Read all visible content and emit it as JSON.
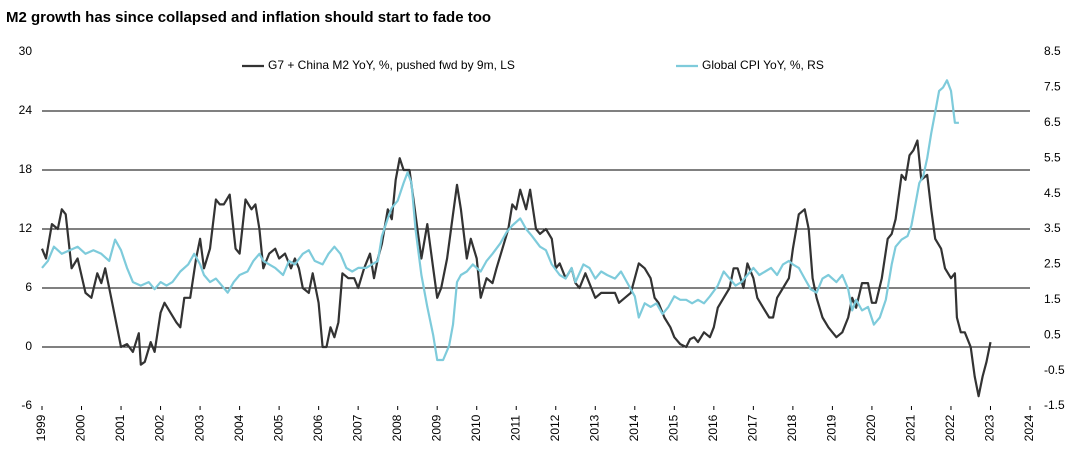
{
  "chart_data": {
    "type": "line",
    "title": "M2 growth has since collapsed and inflation should start to fade too",
    "xlim": [
      1999,
      2024
    ],
    "xticks": [
      1999,
      2000,
      2001,
      2002,
      2003,
      2004,
      2005,
      2006,
      2007,
      2008,
      2009,
      2010,
      2011,
      2012,
      2013,
      2014,
      2015,
      2016,
      2017,
      2018,
      2019,
      2020,
      2021,
      2022,
      2023,
      2024
    ],
    "ylim": [
      -6,
      30
    ],
    "yticks": [
      -6,
      0,
      6,
      12,
      18,
      24,
      30
    ],
    "y2lim": [
      -1.5,
      8.5
    ],
    "y2ticks": [
      -1.5,
      -0.5,
      0.5,
      1.5,
      2.5,
      3.5,
      4.5,
      5.5,
      6.5,
      7.5,
      8.5
    ],
    "grid": true,
    "legend": "top",
    "series": [
      {
        "name": "G7 + China M2 YoY, %, pushed fwd by 9m, LS",
        "color": "#333333",
        "axis": "y",
        "x": [
          1999.0,
          1999.1,
          1999.25,
          1999.4,
          1999.5,
          1999.6,
          1999.75,
          1999.9,
          2000.1,
          2000.25,
          2000.4,
          2000.5,
          2000.6,
          2000.75,
          2000.9,
          2001.0,
          2001.15,
          2001.3,
          2001.45,
          2001.5,
          2001.6,
          2001.75,
          2001.85,
          2002.0,
          2002.1,
          2002.25,
          2002.4,
          2002.5,
          2002.6,
          2002.75,
          2002.9,
          2003.0,
          2003.1,
          2003.25,
          2003.4,
          2003.5,
          2003.6,
          2003.75,
          2003.9,
          2004.0,
          2004.15,
          2004.3,
          2004.4,
          2004.5,
          2004.6,
          2004.75,
          2004.9,
          2005.0,
          2005.15,
          2005.3,
          2005.4,
          2005.5,
          2005.6,
          2005.75,
          2005.85,
          2006.0,
          2006.1,
          2006.2,
          2006.3,
          2006.4,
          2006.5,
          2006.6,
          2006.75,
          2006.9,
          2007.0,
          2007.15,
          2007.3,
          2007.4,
          2007.5,
          2007.6,
          2007.75,
          2007.85,
          2007.95,
          2008.05,
          2008.15,
          2008.3,
          2008.4,
          2008.5,
          2008.6,
          2008.75,
          2008.9,
          2009.0,
          2009.1,
          2009.25,
          2009.4,
          2009.5,
          2009.6,
          2009.75,
          2009.85,
          2010.0,
          2010.1,
          2010.25,
          2010.4,
          2010.5,
          2010.65,
          2010.8,
          2010.9,
          2011.0,
          2011.1,
          2011.25,
          2011.35,
          2011.5,
          2011.6,
          2011.75,
          2011.9,
          2012.0,
          2012.1,
          2012.25,
          2012.4,
          2012.5,
          2012.6,
          2012.75,
          2012.9,
          2013.0,
          2013.15,
          2013.3,
          2013.5,
          2013.6,
          2013.75,
          2013.9,
          2014.0,
          2014.1,
          2014.25,
          2014.4,
          2014.5,
          2014.6,
          2014.75,
          2014.9,
          2015.0,
          2015.15,
          2015.3,
          2015.4,
          2015.5,
          2015.6,
          2015.75,
          2015.9,
          2016.0,
          2016.1,
          2016.25,
          2016.4,
          2016.5,
          2016.6,
          2016.75,
          2016.85,
          2017.0,
          2017.1,
          2017.25,
          2017.4,
          2017.5,
          2017.6,
          2017.75,
          2017.9,
          2018.0,
          2018.15,
          2018.3,
          2018.4,
          2018.5,
          2018.6,
          2018.75,
          2018.9,
          2019.0,
          2019.1,
          2019.25,
          2019.4,
          2019.5,
          2019.6,
          2019.75,
          2019.9,
          2020.0,
          2020.1,
          2020.25,
          2020.4,
          2020.5,
          2020.6,
          2020.75,
          2020.85,
          2020.95,
          2021.05,
          2021.15,
          2021.25,
          2021.4,
          2021.5,
          2021.6,
          2021.75,
          2021.85,
          2022.0,
          2022.1,
          2022.15,
          2022.25,
          2022.35,
          2022.5,
          2022.6,
          2022.7,
          2022.8,
          2022.9,
          2023.0
        ],
        "values": [
          10,
          9,
          12.5,
          12,
          14,
          13.5,
          8,
          9,
          5.5,
          5,
          7.5,
          6.5,
          8,
          5,
          2,
          0,
          0.3,
          -0.5,
          1.4,
          -1.8,
          -1.5,
          0.5,
          -0.5,
          3.5,
          4.5,
          3.5,
          2.5,
          2,
          5,
          5,
          9,
          11,
          8,
          10,
          15,
          14.5,
          14.5,
          15.5,
          10,
          9.5,
          15,
          14,
          14.5,
          12,
          8,
          9.5,
          10,
          9,
          9.5,
          8,
          9,
          8,
          6,
          5.5,
          7.5,
          4.5,
          0,
          0,
          2,
          1,
          2.5,
          7.5,
          7,
          7,
          6,
          8,
          9.5,
          7,
          9,
          10.5,
          14,
          13,
          17,
          19.2,
          18,
          18,
          15,
          12,
          9,
          12.5,
          8,
          5,
          6,
          9,
          13.5,
          16.5,
          14,
          9,
          11,
          9,
          5,
          7,
          6.5,
          8,
          10,
          12,
          14.5,
          14,
          16,
          14,
          16,
          12,
          11.5,
          12,
          11,
          8,
          8.5,
          7,
          8,
          6.5,
          6,
          7.5,
          6,
          5,
          5.5,
          5.5,
          5.5,
          4.5,
          5,
          5.5,
          7,
          8.5,
          8,
          7,
          5,
          4.5,
          3,
          2,
          1,
          0.3,
          0,
          0.8,
          1,
          0.5,
          1.5,
          1,
          2,
          4,
          5,
          6,
          8,
          8,
          6,
          8.5,
          7,
          5,
          4,
          3,
          3,
          5,
          6,
          7,
          10,
          13.5,
          14,
          12,
          7,
          5,
          3,
          2,
          1.5,
          1,
          1.5,
          3,
          5,
          4,
          6.5,
          6.5,
          4.5,
          4.5,
          7,
          11,
          11.5,
          13,
          17.5,
          17,
          19.5,
          20,
          21,
          17,
          17.5,
          14,
          11,
          10,
          8,
          7,
          7.5,
          3,
          1.5,
          1.5,
          0,
          -3,
          -5,
          -3,
          -1.5,
          0.5
        ]
      },
      {
        "name": "Global CPI YoY, %, RS",
        "color": "#7ecbdb",
        "axis": "y2",
        "x": [
          1999.0,
          1999.15,
          1999.3,
          1999.5,
          1999.7,
          1999.9,
          2000.1,
          2000.3,
          2000.5,
          2000.7,
          2000.85,
          2001.0,
          2001.15,
          2001.3,
          2001.5,
          2001.7,
          2001.85,
          2002.0,
          2002.15,
          2002.3,
          2002.5,
          2002.7,
          2002.85,
          2003.0,
          2003.1,
          2003.25,
          2003.4,
          2003.55,
          2003.7,
          2003.85,
          2004.0,
          2004.2,
          2004.35,
          2004.5,
          2004.6,
          2004.75,
          2004.9,
          2005.1,
          2005.25,
          2005.4,
          2005.6,
          2005.75,
          2005.9,
          2006.1,
          2006.25,
          2006.4,
          2006.55,
          2006.7,
          2006.85,
          2007.0,
          2007.2,
          2007.35,
          2007.5,
          2007.6,
          2007.75,
          2007.85,
          2008.0,
          2008.15,
          2008.25,
          2008.35,
          2008.45,
          2008.6,
          2008.75,
          2008.9,
          2009.0,
          2009.15,
          2009.3,
          2009.4,
          2009.5,
          2009.6,
          2009.75,
          2009.9,
          2010.1,
          2010.25,
          2010.4,
          2010.6,
          2010.75,
          2010.9,
          2011.1,
          2011.25,
          2011.4,
          2011.6,
          2011.75,
          2011.9,
          2012.1,
          2012.25,
          2012.4,
          2012.5,
          2012.7,
          2012.85,
          2013.0,
          2013.15,
          2013.3,
          2013.5,
          2013.65,
          2013.8,
          2014.0,
          2014.1,
          2014.25,
          2014.4,
          2014.55,
          2014.7,
          2014.85,
          2015.0,
          2015.15,
          2015.3,
          2015.45,
          2015.6,
          2015.75,
          2015.9,
          2016.1,
          2016.25,
          2016.4,
          2016.55,
          2016.7,
          2016.85,
          2017.0,
          2017.15,
          2017.3,
          2017.45,
          2017.6,
          2017.75,
          2017.9,
          2018.0,
          2018.15,
          2018.3,
          2018.45,
          2018.6,
          2018.75,
          2018.9,
          2019.1,
          2019.25,
          2019.4,
          2019.5,
          2019.6,
          2019.75,
          2019.9,
          2020.05,
          2020.2,
          2020.35,
          2020.5,
          2020.6,
          2020.75,
          2020.9,
          2021.0,
          2021.1,
          2021.2,
          2021.3,
          2021.4,
          2021.5,
          2021.6,
          2021.7,
          2021.8,
          2021.9,
          2022.0,
          2022.1,
          2022.2
        ],
        "values": [
          2.4,
          2.6,
          3,
          2.8,
          2.9,
          3.0,
          2.8,
          2.9,
          2.8,
          2.6,
          3.2,
          2.9,
          2.4,
          2.0,
          1.9,
          2.0,
          1.8,
          2.0,
          1.9,
          2.0,
          2.3,
          2.5,
          2.8,
          2.5,
          2.2,
          2.0,
          2.1,
          1.9,
          1.7,
          2.0,
          2.2,
          2.3,
          2.6,
          2.8,
          2.6,
          2.5,
          2.4,
          2.2,
          2.6,
          2.5,
          2.8,
          2.9,
          2.6,
          2.5,
          2.8,
          3.0,
          2.8,
          2.4,
          2.3,
          2.4,
          2.4,
          2.5,
          2.6,
          3.3,
          3.8,
          4.1,
          4.3,
          4.8,
          5.1,
          4.8,
          3.5,
          2.2,
          1.3,
          0.5,
          -0.2,
          -0.2,
          0.2,
          0.8,
          2.0,
          2.2,
          2.3,
          2.5,
          2.3,
          2.6,
          2.8,
          3.1,
          3.4,
          3.6,
          3.8,
          3.5,
          3.3,
          3.0,
          2.9,
          2.5,
          2.2,
          2.1,
          2.4,
          2.0,
          2.5,
          2.4,
          2.1,
          2.3,
          2.2,
          2.1,
          2.3,
          2.0,
          1.6,
          1.0,
          1.4,
          1.3,
          1.4,
          1.1,
          1.3,
          1.6,
          1.5,
          1.5,
          1.4,
          1.5,
          1.4,
          1.6,
          1.9,
          2.3,
          2.1,
          1.9,
          2.0,
          2.2,
          2.4,
          2.2,
          2.3,
          2.4,
          2.2,
          2.5,
          2.6,
          2.5,
          2.4,
          2.1,
          1.8,
          1.7,
          2.1,
          2.2,
          2.0,
          2.2,
          1.8,
          1.2,
          1.5,
          1.2,
          1.3,
          0.8,
          1.0,
          1.5,
          2.5,
          3.0,
          3.2,
          3.3,
          3.6,
          4.2,
          4.8,
          5.0,
          5.5,
          6.2,
          6.8,
          7.4,
          7.5,
          7.7,
          7.4,
          6.5,
          6.5
        ]
      }
    ]
  }
}
